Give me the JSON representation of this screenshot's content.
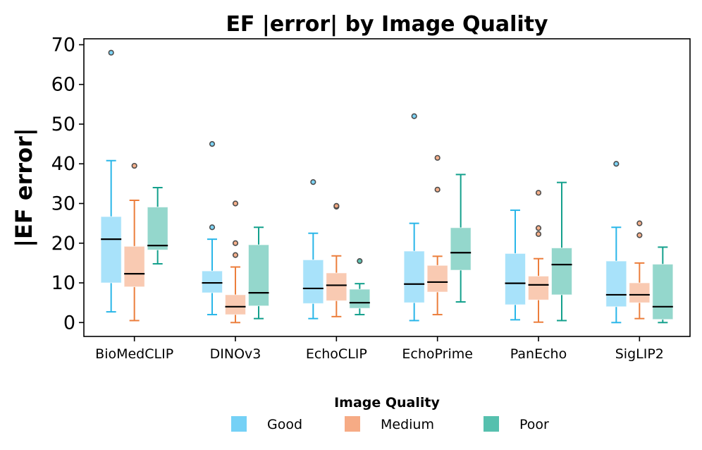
{
  "chart_data": {
    "type": "boxplot",
    "title": "EF |error| by Image Quality",
    "xlabel": "",
    "ylabel": "|EF error|",
    "ylim": [
      -3.5,
      71.5
    ],
    "yticks": [
      0,
      10,
      20,
      30,
      40,
      50,
      60,
      70
    ],
    "categories": [
      "BioMedCLIP",
      "DINOv3",
      "EchoCLIP",
      "EchoPrime",
      "PanEcho",
      "SigLIP2"
    ],
    "legend": {
      "title": "Image Quality",
      "placement": "bottom-center"
    },
    "series": [
      {
        "name": "Good",
        "color": "#6ecff6",
        "edge": "#29b6e8",
        "boxes": [
          {
            "whislo": 2.7,
            "q1": 10.0,
            "med": 21.0,
            "q3": 26.7,
            "whishi": 40.8,
            "fliers": [
              68.0
            ]
          },
          {
            "whislo": 2.0,
            "q1": 7.5,
            "med": 10.0,
            "q3": 13.0,
            "whishi": 21.0,
            "fliers": [
              24.0,
              45.0
            ]
          },
          {
            "whislo": 1.0,
            "q1": 4.8,
            "med": 8.6,
            "q3": 15.8,
            "whishi": 22.5,
            "fliers": [
              35.4
            ]
          },
          {
            "whislo": 0.5,
            "q1": 5.0,
            "med": 9.7,
            "q3": 18.0,
            "whishi": 25.0,
            "fliers": [
              52.0
            ]
          },
          {
            "whislo": 0.7,
            "q1": 4.5,
            "med": 9.9,
            "q3": 17.4,
            "whishi": 28.3,
            "fliers": []
          },
          {
            "whislo": 0.0,
            "q1": 4.0,
            "med": 7.0,
            "q3": 15.5,
            "whishi": 24.0,
            "fliers": [
              40.0
            ]
          }
        ]
      },
      {
        "name": "Medium",
        "color": "#f5a77e",
        "edge": "#ec7e3c",
        "boxes": [
          {
            "whislo": 0.5,
            "q1": 9.0,
            "med": 12.3,
            "q3": 19.2,
            "whishi": 30.8,
            "fliers": [
              39.5
            ]
          },
          {
            "whislo": 0.0,
            "q1": 2.0,
            "med": 4.0,
            "q3": 7.0,
            "whishi": 14.0,
            "fliers": [
              17.0,
              20.0,
              30.0
            ]
          },
          {
            "whislo": 1.5,
            "q1": 5.5,
            "med": 9.4,
            "q3": 12.5,
            "whishi": 16.8,
            "fliers": [
              29.2,
              29.4
            ]
          },
          {
            "whislo": 2.0,
            "q1": 7.7,
            "med": 10.2,
            "q3": 14.4,
            "whishi": 16.7,
            "fliers": [
              33.5,
              41.5
            ]
          },
          {
            "whislo": 0.1,
            "q1": 5.7,
            "med": 9.5,
            "q3": 11.7,
            "whishi": 16.1,
            "fliers": [
              22.3,
              23.8,
              32.7
            ]
          },
          {
            "whislo": 1.0,
            "q1": 5.0,
            "med": 7.0,
            "q3": 10.0,
            "whishi": 15.0,
            "fliers": [
              22.0,
              25.0
            ]
          }
        ]
      },
      {
        "name": "Poor",
        "color": "#4dbdaa",
        "edge": "#13a08c",
        "boxes": [
          {
            "whislo": 14.8,
            "q1": 18.3,
            "med": 19.4,
            "q3": 29.1,
            "whishi": 34.0,
            "fliers": []
          },
          {
            "whislo": 1.0,
            "q1": 4.2,
            "med": 7.5,
            "q3": 19.6,
            "whishi": 24.0,
            "fliers": []
          },
          {
            "whislo": 2.0,
            "q1": 3.6,
            "med": 5.0,
            "q3": 8.4,
            "whishi": 9.8,
            "fliers": [
              15.5
            ]
          },
          {
            "whislo": 5.2,
            "q1": 13.2,
            "med": 17.6,
            "q3": 23.9,
            "whishi": 37.3,
            "fliers": []
          },
          {
            "whislo": 0.5,
            "q1": 7.0,
            "med": 14.6,
            "q3": 18.8,
            "whishi": 35.3,
            "fliers": []
          },
          {
            "whislo": 0.0,
            "q1": 0.8,
            "med": 4.0,
            "q3": 14.7,
            "whishi": 19.0,
            "fliers": []
          }
        ]
      }
    ]
  }
}
